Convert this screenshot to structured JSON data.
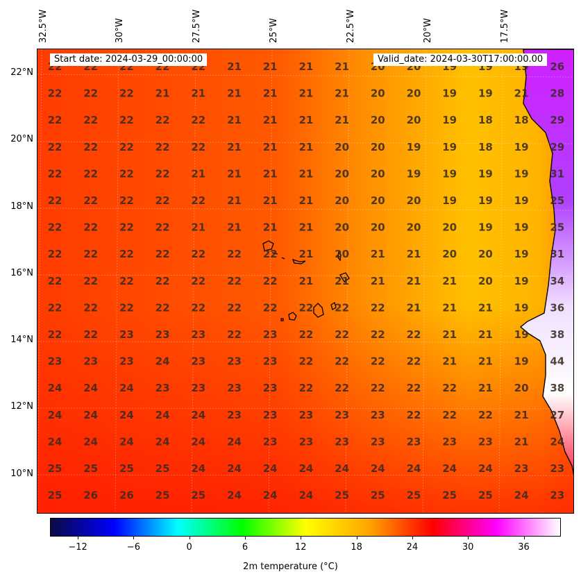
{
  "header": {
    "start_date": "Start date: 2024-03-29_00:00:00",
    "valid_date": "Valid_date: 2024-03-30T17:00:00.00"
  },
  "axes": {
    "lon_labels": [
      "32.5°W",
      "30°W",
      "27.5°W",
      "25°W",
      "22.5°W",
      "20°W",
      "17.5°W"
    ],
    "lat_labels": [
      "22°N",
      "20°N",
      "18°N",
      "16°N",
      "14°N",
      "12°N",
      "10°N"
    ]
  },
  "colorbar": {
    "label": "2m temperature ($^\\circ$C)",
    "label_display": "2m temperature (°C)",
    "ticks": [
      "−12",
      "−6",
      "0",
      "6",
      "12",
      "18",
      "24",
      "30",
      "36"
    ],
    "tick_values": [
      -12,
      -6,
      0,
      6,
      12,
      18,
      24,
      30,
      36
    ],
    "range": [
      -15,
      40
    ],
    "colors": [
      "#0a0a46",
      "#0000ff",
      "#00ffff",
      "#00ff00",
      "#ffff00",
      "#ffa500",
      "#ff0000",
      "#ff00ff",
      "#ffffff"
    ]
  },
  "chart_data": {
    "type": "heatmap",
    "grid": [
      [
        "22",
        "22",
        "22",
        "22",
        "22",
        "21",
        "21",
        "21",
        "21",
        "20",
        "20",
        "19",
        "19",
        "19",
        "26"
      ],
      [
        "22",
        "22",
        "22",
        "21",
        "21",
        "21",
        "21",
        "21",
        "21",
        "20",
        "20",
        "19",
        "19",
        "21",
        "28"
      ],
      [
        "22",
        "22",
        "22",
        "22",
        "22",
        "21",
        "21",
        "21",
        "21",
        "20",
        "20",
        "19",
        "18",
        "18",
        "29"
      ],
      [
        "22",
        "22",
        "22",
        "22",
        "22",
        "21",
        "21",
        "21",
        "20",
        "20",
        "19",
        "19",
        "18",
        "19",
        "29"
      ],
      [
        "22",
        "22",
        "22",
        "22",
        "21",
        "21",
        "21",
        "21",
        "20",
        "20",
        "19",
        "19",
        "19",
        "19",
        "31"
      ],
      [
        "22",
        "22",
        "22",
        "22",
        "22",
        "21",
        "21",
        "21",
        "20",
        "20",
        "20",
        "19",
        "19",
        "19",
        "25"
      ],
      [
        "22",
        "22",
        "22",
        "22",
        "21",
        "21",
        "21",
        "21",
        "20",
        "20",
        "20",
        "20",
        "19",
        "19",
        "25"
      ],
      [
        "22",
        "22",
        "22",
        "22",
        "22",
        "22",
        "22",
        "21",
        "20",
        "21",
        "21",
        "20",
        "20",
        "19",
        "31"
      ],
      [
        "22",
        "22",
        "22",
        "22",
        "22",
        "22",
        "22",
        "21",
        "21",
        "21",
        "21",
        "21",
        "20",
        "19",
        "34"
      ],
      [
        "22",
        "22",
        "22",
        "22",
        "22",
        "22",
        "22",
        "22",
        "22",
        "22",
        "21",
        "21",
        "21",
        "19",
        "36"
      ],
      [
        "22",
        "22",
        "23",
        "23",
        "23",
        "22",
        "23",
        "22",
        "22",
        "22",
        "22",
        "21",
        "21",
        "19",
        "38"
      ],
      [
        "23",
        "23",
        "23",
        "24",
        "23",
        "23",
        "23",
        "22",
        "22",
        "22",
        "22",
        "21",
        "21",
        "19",
        "44"
      ],
      [
        "24",
        "24",
        "24",
        "23",
        "23",
        "23",
        "23",
        "22",
        "22",
        "22",
        "22",
        "22",
        "21",
        "20",
        "38"
      ],
      [
        "24",
        "24",
        "24",
        "24",
        "24",
        "23",
        "23",
        "23",
        "23",
        "23",
        "22",
        "22",
        "22",
        "21",
        "27"
      ],
      [
        "24",
        "24",
        "24",
        "24",
        "24",
        "24",
        "23",
        "23",
        "23",
        "23",
        "23",
        "23",
        "23",
        "21",
        "24"
      ],
      [
        "25",
        "25",
        "25",
        "25",
        "24",
        "24",
        "24",
        "24",
        "24",
        "24",
        "24",
        "24",
        "24",
        "23",
        "23"
      ],
      [
        "25",
        "26",
        "26",
        "25",
        "25",
        "24",
        "24",
        "24",
        "25",
        "25",
        "25",
        "25",
        "25",
        "24",
        "23"
      ]
    ]
  }
}
